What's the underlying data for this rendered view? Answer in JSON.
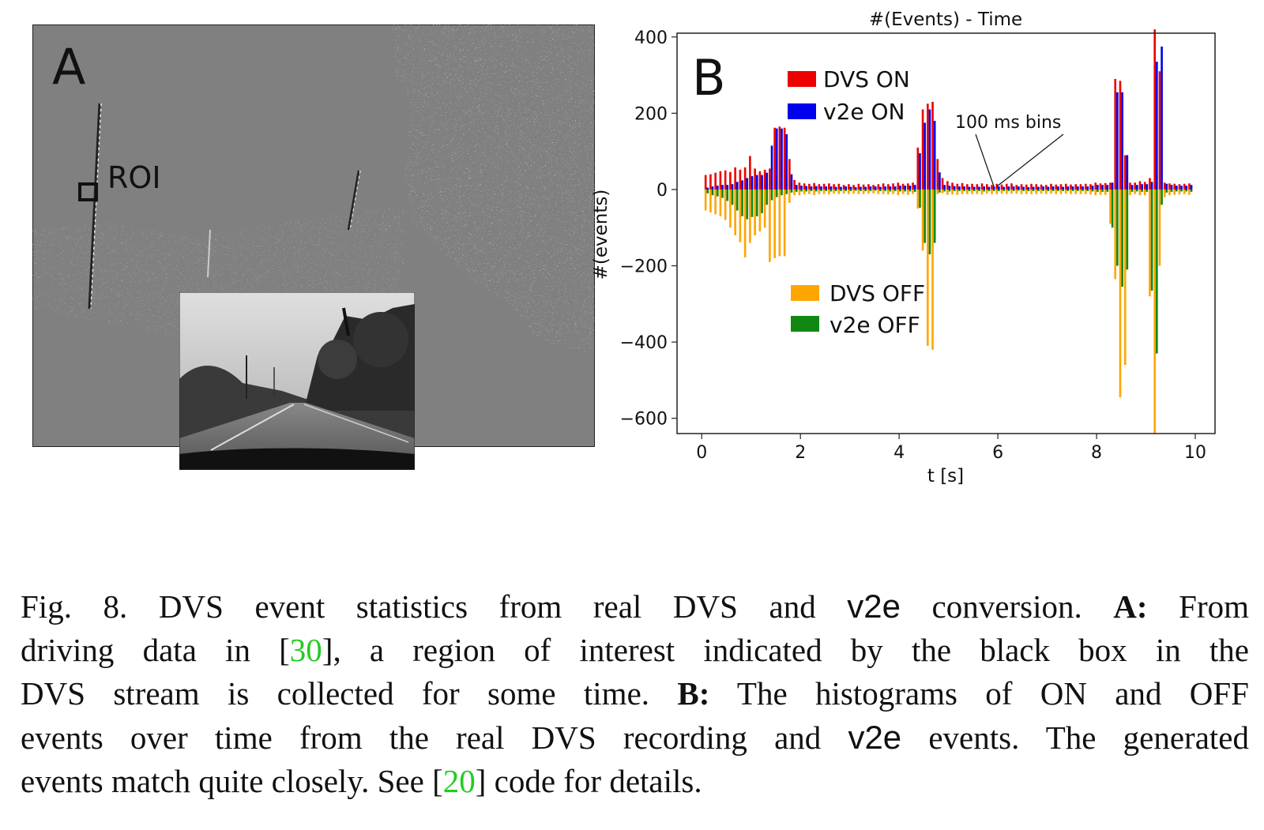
{
  "panel_a": {
    "letter": "A",
    "roi_label": "ROI"
  },
  "chart_data": {
    "type": "bar",
    "title": "#(Events) - Time",
    "panel_letter": "B",
    "xlabel": "t [s]",
    "ylabel": "#(events)",
    "xlim": [
      -0.5,
      10.4
    ],
    "ylim": [
      -640,
      410
    ],
    "xticks": [
      0,
      2,
      4,
      6,
      8,
      10
    ],
    "yticks": [
      400,
      200,
      0,
      -200,
      -400,
      -600
    ],
    "annotation": "100 ms bins",
    "legend_on": [
      {
        "name": "DVS ON",
        "color": "#ee0000"
      },
      {
        "name": "v2e ON",
        "color": "#0000ee"
      }
    ],
    "legend_off": [
      {
        "name": "DVS OFF",
        "color": "#ffa500"
      },
      {
        "name": "v2e OFF",
        "color": "#118811"
      }
    ],
    "x": [
      0.1,
      0.2,
      0.3,
      0.4,
      0.5,
      0.6,
      0.7,
      0.8,
      0.9,
      1.0,
      1.1,
      1.2,
      1.3,
      1.4,
      1.5,
      1.6,
      1.7,
      1.8,
      1.9,
      2.0,
      2.1,
      2.2,
      2.3,
      2.4,
      2.5,
      2.6,
      2.7,
      2.8,
      2.9,
      3.0,
      3.1,
      3.2,
      3.3,
      3.4,
      3.5,
      3.6,
      3.7,
      3.8,
      3.9,
      4.0,
      4.1,
      4.2,
      4.3,
      4.4,
      4.5,
      4.6,
      4.7,
      4.8,
      4.9,
      5.0,
      5.1,
      5.2,
      5.3,
      5.4,
      5.5,
      5.6,
      5.7,
      5.8,
      5.9,
      6.0,
      6.1,
      6.2,
      6.3,
      6.4,
      6.5,
      6.6,
      6.7,
      6.8,
      6.9,
      7.0,
      7.1,
      7.2,
      7.3,
      7.4,
      7.5,
      7.6,
      7.7,
      7.8,
      7.9,
      8.0,
      8.1,
      8.2,
      8.3,
      8.4,
      8.5,
      8.6,
      8.7,
      8.8,
      8.9,
      9.0,
      9.1,
      9.2,
      9.3,
      9.4,
      9.5,
      9.6,
      9.7,
      9.8,
      9.9
    ],
    "series": [
      {
        "name": "DVS ON",
        "color": "#ee0000",
        "values": [
          38,
          40,
          44,
          48,
          50,
          46,
          58,
          52,
          58,
          88,
          55,
          48,
          52,
          55,
          162,
          165,
          162,
          80,
          25,
          18,
          16,
          15,
          17,
          14,
          15,
          16,
          14,
          15,
          12,
          14,
          12,
          15,
          13,
          14,
          12,
          14,
          16,
          14,
          16,
          18,
          15,
          16,
          18,
          110,
          210,
          225,
          230,
          80,
          30,
          22,
          18,
          15,
          17,
          14,
          15,
          14,
          16,
          14,
          12,
          15,
          13,
          15,
          16,
          12,
          14,
          13,
          15,
          14,
          13,
          12,
          15,
          13,
          14,
          15,
          13,
          14,
          14,
          15,
          14,
          18,
          16,
          17,
          18,
          290,
          285,
          90,
          18,
          18,
          22,
          20,
          30,
          420,
          310,
          18,
          16,
          15,
          14,
          15,
          16
        ]
      },
      {
        "name": "v2e ON",
        "color": "#0000ee",
        "values": [
          5,
          8,
          10,
          12,
          12,
          14,
          20,
          24,
          30,
          35,
          38,
          38,
          44,
          115,
          160,
          160,
          145,
          40,
          12,
          10,
          9,
          8,
          9,
          8,
          8,
          8,
          7,
          7,
          8,
          7,
          6,
          7,
          7,
          8,
          8,
          7,
          8,
          8,
          8,
          10,
          10,
          10,
          12,
          95,
          175,
          210,
          180,
          45,
          12,
          10,
          9,
          8,
          8,
          7,
          7,
          7,
          8,
          7,
          8,
          8,
          7,
          8,
          8,
          8,
          7,
          6,
          7,
          7,
          8,
          7,
          8,
          8,
          7,
          8,
          8,
          8,
          8,
          8,
          10,
          12,
          12,
          12,
          18,
          255,
          255,
          90,
          12,
          12,
          14,
          14,
          20,
          335,
          375,
          15,
          12,
          10,
          10,
          10,
          12
        ]
      },
      {
        "name": "DVS OFF",
        "color": "#ffa500",
        "values": [
          -55,
          -60,
          -65,
          -70,
          -80,
          -100,
          -120,
          -138,
          -178,
          -140,
          -120,
          -110,
          -100,
          -190,
          -180,
          -175,
          -175,
          -35,
          -15,
          -15,
          -13,
          -12,
          -15,
          -12,
          -12,
          -13,
          -11,
          -12,
          -11,
          -12,
          -11,
          -12,
          -12,
          -11,
          -10,
          -12,
          -12,
          -13,
          -12,
          -15,
          -12,
          -14,
          -12,
          -50,
          -160,
          -410,
          -420,
          -12,
          -10,
          -14,
          -13,
          -14,
          -12,
          -12,
          -12,
          -12,
          -13,
          -11,
          -12,
          -12,
          -11,
          -12,
          -11,
          -11,
          -12,
          -12,
          -12,
          -12,
          -11,
          -12,
          -11,
          -12,
          -12,
          -11,
          -12,
          -12,
          -12,
          -12,
          -13,
          -15,
          -14,
          -14,
          -90,
          -235,
          -545,
          -460,
          -15,
          -12,
          -15,
          -15,
          -280,
          -640,
          -200,
          -20,
          -15,
          -14,
          -13,
          -12,
          -14
        ]
      },
      {
        "name": "v2e OFF",
        "color": "#118811",
        "values": [
          -10,
          -15,
          -18,
          -22,
          -30,
          -40,
          -55,
          -70,
          -78,
          -72,
          -70,
          -62,
          -40,
          -28,
          -20,
          -15,
          -12,
          -8,
          -6,
          -5,
          -5,
          -4,
          -5,
          -4,
          -4,
          -5,
          -4,
          -4,
          -4,
          -4,
          -3,
          -4,
          -4,
          -4,
          -3,
          -4,
          -4,
          -5,
          -4,
          -5,
          -5,
          -5,
          -6,
          -48,
          -140,
          -170,
          -140,
          -8,
          -5,
          -5,
          -4,
          -4,
          -4,
          -4,
          -4,
          -4,
          -5,
          -4,
          -4,
          -4,
          -4,
          -4,
          -4,
          -3,
          -4,
          -4,
          -4,
          -4,
          -4,
          -4,
          -4,
          -4,
          -4,
          -4,
          -4,
          -4,
          -4,
          -4,
          -5,
          -6,
          -6,
          -6,
          -100,
          -200,
          -255,
          -210,
          -6,
          -5,
          -6,
          -6,
          -265,
          -430,
          -40,
          -8,
          -6,
          -5,
          -5,
          -5,
          -6
        ]
      }
    ]
  },
  "caption": {
    "lines": [
      [
        {
          "t": "Fig. 8.  DVS event statistics from real DVS and "
        },
        {
          "t": "v2e",
          "s": "code"
        },
        {
          "t": " conversion. "
        },
        {
          "t": "A:",
          "s": "b"
        },
        {
          "t": " From"
        }
      ],
      [
        {
          "t": "driving data in ["
        },
        {
          "t": "30",
          "s": "ref"
        },
        {
          "t": "], a region of interest indicated by the black box in the"
        }
      ],
      [
        {
          "t": "DVS stream is collected for some time. "
        },
        {
          "t": "B:",
          "s": "b"
        },
        {
          "t": " The histograms of ON and OFF"
        }
      ],
      [
        {
          "t": "events over time from the real DVS recording and "
        },
        {
          "t": "v2e",
          "s": "code"
        },
        {
          "t": " events. The generated"
        }
      ],
      [
        {
          "t": "events match quite closely. See ["
        },
        {
          "t": "20",
          "s": "ref"
        },
        {
          "t": "] code for details."
        }
      ]
    ]
  }
}
